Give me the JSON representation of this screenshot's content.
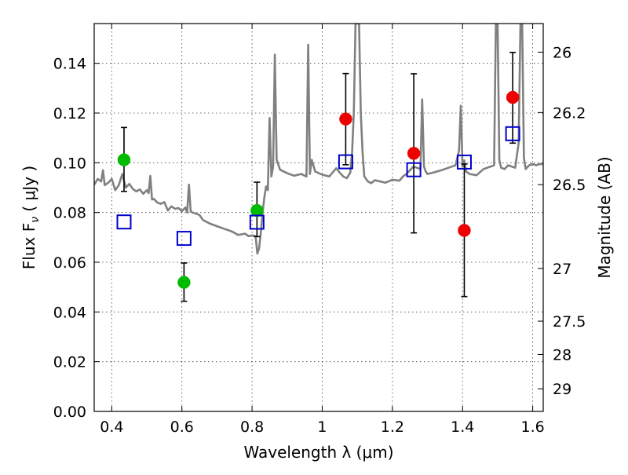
{
  "chart_data": {
    "type": "scatter",
    "xlabel": "Wavelength  λ (μm)",
    "ylabel": "Flux  F",
    "ylabel_sub": "ν",
    "ylabel_unit": "  ( μJy )",
    "y2label": "Magnitude (AB)",
    "xlim": [
      0.35,
      1.63
    ],
    "ylim": [
      0.0,
      0.156
    ],
    "grid": true,
    "x_ticks": [
      0.4,
      0.6,
      0.8,
      1.0,
      1.2,
      1.4,
      1.6
    ],
    "x_tick_labels": [
      "0.4",
      "0.6",
      "0.8",
      "1",
      "1.2",
      "1.4",
      "1.6"
    ],
    "y_ticks": [
      0.0,
      0.02,
      0.04,
      0.06,
      0.08,
      0.1,
      0.12,
      0.14
    ],
    "y_tick_labels": [
      "0.00",
      "0.02",
      "0.04",
      "0.06",
      "0.08",
      "0.10",
      "0.12",
      "0.14"
    ],
    "y2_ticks": [
      {
        "label": "26",
        "flux": 0.1445
      },
      {
        "label": "26.2",
        "flux": 0.1202
      },
      {
        "label": "26.5",
        "flux": 0.0912
      },
      {
        "label": "27",
        "flux": 0.0575
      },
      {
        "label": "27.5",
        "flux": 0.0363
      },
      {
        "label": "28",
        "flux": 0.0229
      },
      {
        "label": "29",
        "flux": 0.0091
      }
    ],
    "series": [
      {
        "color": "#00bb00",
        "marker": "circle",
        "points": [
          {
            "x": 0.435,
            "y": 0.1012,
            "err_low": 0.0885,
            "err_high": 0.1142
          },
          {
            "x": 0.606,
            "y": 0.0519,
            "err_low": 0.0443,
            "err_high": 0.0597
          },
          {
            "x": 0.814,
            "y": 0.0808,
            "err_low": 0.0703,
            "err_high": 0.0922
          }
        ]
      },
      {
        "color": "#ee0000",
        "marker": "circle",
        "points": [
          {
            "x": 1.067,
            "y": 0.1176,
            "err_low": 0.0992,
            "err_high": 0.1359
          },
          {
            "x": 1.261,
            "y": 0.1038,
            "err_low": 0.0718,
            "err_high": 0.1358
          },
          {
            "x": 1.405,
            "y": 0.0728,
            "err_low": 0.0462,
            "err_high": 0.0995
          },
          {
            "x": 1.543,
            "y": 0.1263,
            "err_low": 0.1079,
            "err_high": 0.1444
          }
        ]
      },
      {
        "color": "#0000cc",
        "marker": "open-square",
        "points": [
          {
            "x": 0.435,
            "y": 0.0762
          },
          {
            "x": 0.606,
            "y": 0.0696
          },
          {
            "x": 0.814,
            "y": 0.0761
          },
          {
            "x": 1.067,
            "y": 0.1004
          },
          {
            "x": 1.261,
            "y": 0.0972
          },
          {
            "x": 1.405,
            "y": 0.1003
          },
          {
            "x": 1.543,
            "y": 0.1117
          }
        ]
      }
    ],
    "spectrum": {
      "color": "#808080",
      "x": [
        0.35,
        0.36,
        0.37,
        0.375,
        0.38,
        0.39,
        0.4,
        0.41,
        0.42,
        0.43,
        0.44,
        0.45,
        0.46,
        0.47,
        0.48,
        0.49,
        0.5,
        0.505,
        0.51,
        0.515,
        0.52,
        0.53,
        0.54,
        0.55,
        0.56,
        0.57,
        0.58,
        0.59,
        0.6,
        0.61,
        0.615,
        0.62,
        0.625,
        0.63,
        0.65,
        0.66,
        0.68,
        0.7,
        0.72,
        0.74,
        0.75,
        0.76,
        0.77,
        0.78,
        0.79,
        0.8,
        0.81,
        0.815,
        0.82,
        0.825,
        0.83,
        0.835,
        0.84,
        0.845,
        0.85,
        0.855,
        0.86,
        0.865,
        0.87,
        0.88,
        0.9,
        0.92,
        0.94,
        0.955,
        0.96,
        0.965,
        0.97,
        0.98,
        1.0,
        1.02,
        1.04,
        1.05,
        1.06,
        1.07,
        1.08,
        1.085,
        1.09,
        1.095,
        1.1,
        1.105,
        1.11,
        1.115,
        1.12,
        1.13,
        1.14,
        1.15,
        1.18,
        1.2,
        1.22,
        1.23,
        1.24,
        1.26,
        1.28,
        1.285,
        1.29,
        1.295,
        1.3,
        1.32,
        1.34,
        1.36,
        1.38,
        1.39,
        1.395,
        1.4,
        1.405,
        1.41,
        1.42,
        1.44,
        1.46,
        1.48,
        1.49,
        1.495,
        1.5,
        1.505,
        1.51,
        1.52,
        1.53,
        1.54,
        1.55,
        1.56,
        1.565,
        1.57,
        1.575,
        1.58,
        1.59,
        1.6,
        1.61,
        1.62,
        1.63
      ],
      "y": [
        0.0912,
        0.0935,
        0.0925,
        0.097,
        0.091,
        0.092,
        0.0935,
        0.089,
        0.091,
        0.0955,
        0.09,
        0.0915,
        0.0895,
        0.0885,
        0.0893,
        0.0875,
        0.089,
        0.0878,
        0.0947,
        0.0852,
        0.0855,
        0.084,
        0.0835,
        0.0842,
        0.0808,
        0.0825,
        0.0815,
        0.0818,
        0.0805,
        0.082,
        0.08,
        0.0912,
        0.0805,
        0.08,
        0.079,
        0.077,
        0.0755,
        0.0745,
        0.0735,
        0.0725,
        0.0718,
        0.071,
        0.0712,
        0.0715,
        0.0705,
        0.0708,
        0.0705,
        0.0635,
        0.0655,
        0.072,
        0.08,
        0.086,
        0.0905,
        0.089,
        0.118,
        0.0945,
        0.0985,
        0.1435,
        0.1012,
        0.0972,
        0.0958,
        0.0948,
        0.0955,
        0.0945,
        0.1475,
        0.0955,
        0.1012,
        0.0965,
        0.0952,
        0.0945,
        0.0978,
        0.096,
        0.0945,
        0.0938,
        0.096,
        0.104,
        0.12,
        0.156,
        0.156,
        0.156,
        0.12,
        0.104,
        0.0945,
        0.0925,
        0.0918,
        0.093,
        0.092,
        0.0932,
        0.0928,
        0.0945,
        0.0955,
        0.0985,
        0.0975,
        0.1255,
        0.0985,
        0.0965,
        0.0955,
        0.0962,
        0.097,
        0.098,
        0.099,
        0.105,
        0.123,
        0.0985,
        0.101,
        0.0965,
        0.0955,
        0.095,
        0.0975,
        0.0985,
        0.099,
        0.156,
        0.156,
        0.101,
        0.098,
        0.0975,
        0.099,
        0.0985,
        0.098,
        0.108,
        0.156,
        0.156,
        0.102,
        0.0975,
        0.099,
        0.0995,
        0.099,
        0.0995,
        0.0995
      ]
    }
  }
}
